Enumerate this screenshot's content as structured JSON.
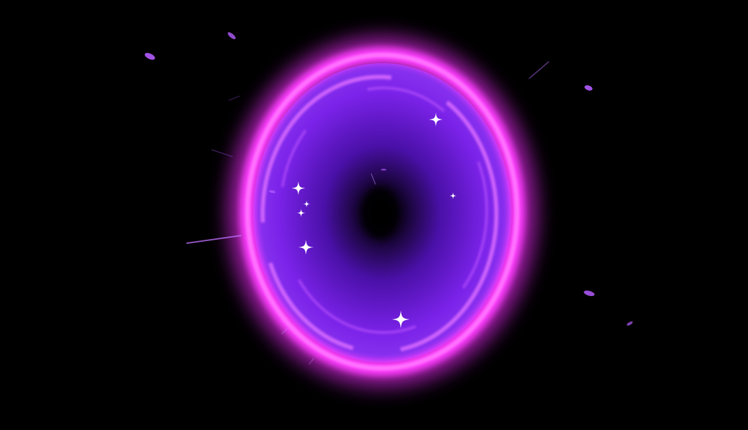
{
  "scene": {
    "subject": "portal",
    "colors": {
      "background": "#000000",
      "ring": "#ff3cff",
      "ring_inner": "#e070ff",
      "interior": "#7a22e8",
      "interior_mid": "#4a10a8",
      "core": "#000000",
      "sparkle": "#ffffff",
      "particle": "#b45cff"
    },
    "icons": {
      "sparkle": "sparkle-icon",
      "particle": "particle-icon"
    }
  }
}
